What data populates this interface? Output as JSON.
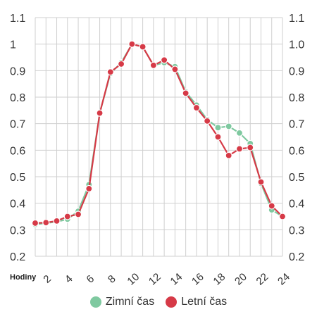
{
  "chart_data": {
    "type": "line",
    "xlabel": "Hodiny",
    "x": [
      1,
      2,
      3,
      4,
      5,
      6,
      7,
      8,
      9,
      10,
      11,
      12,
      13,
      14,
      15,
      16,
      17,
      18,
      19,
      20,
      21,
      22,
      23,
      24
    ],
    "x_ticks": [
      "2",
      "4",
      "6",
      "8",
      "10",
      "12",
      "14",
      "16",
      "18",
      "20",
      "22",
      "24"
    ],
    "ylim": [
      0.2,
      1.1
    ],
    "y_ticks_left": [
      "0.2",
      "0.3",
      "0.4",
      "0.5",
      "0.6",
      "0.7",
      "0.8",
      "0.9",
      "1",
      "1.1"
    ],
    "y_ticks_right": [
      "0.2",
      "0.3",
      "0.4",
      "0.5",
      "0.6",
      "0.7",
      "0.8",
      "0.9",
      "1.0",
      "1.1"
    ],
    "grid": true,
    "legend_position": "bottom",
    "series": [
      {
        "name": "Zimní čas",
        "color": "#7fc9a0",
        "values": [
          0.32,
          0.325,
          0.33,
          0.34,
          0.37,
          0.47,
          0.74,
          0.89,
          0.93,
          1.0,
          0.99,
          0.92,
          0.93,
          0.915,
          0.82,
          0.77,
          0.715,
          0.685,
          0.69,
          0.665,
          0.625,
          0.475,
          0.375,
          0.35
        ]
      },
      {
        "name": "Letní čas",
        "color": "#d63a47",
        "values": [
          0.325,
          0.327,
          0.333,
          0.35,
          0.358,
          0.455,
          0.74,
          0.895,
          0.925,
          1.0,
          0.99,
          0.92,
          0.94,
          0.905,
          0.815,
          0.76,
          0.71,
          0.65,
          0.58,
          0.605,
          0.61,
          0.48,
          0.39,
          0.35
        ]
      }
    ]
  }
}
